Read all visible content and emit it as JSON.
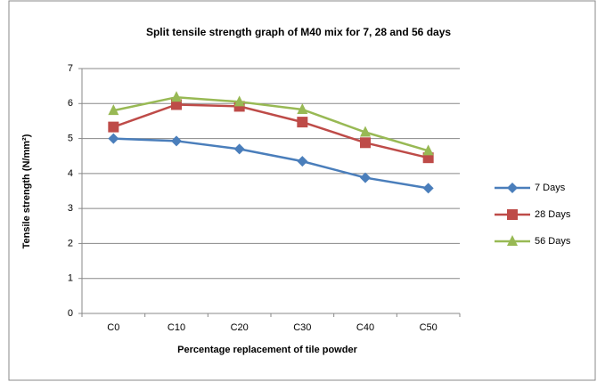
{
  "chart_data": {
    "type": "line",
    "title": "Split tensile strength graph of M40 mix for 7, 28 and 56 days",
    "x_label": "Percentage replacement of tile powder",
    "y_label": "Tensile strength (N/mm²)",
    "categories": [
      "C0",
      "C10",
      "C20",
      "C30",
      "C40",
      "C50"
    ],
    "series": [
      {
        "name": "7 Days",
        "color": "#4a7ebb",
        "marker": "diamond",
        "values": [
          5.0,
          4.93,
          4.7,
          4.35,
          3.88,
          3.58
        ]
      },
      {
        "name": "28 Days",
        "color": "#be4b48",
        "marker": "square",
        "values": [
          5.33,
          5.97,
          5.92,
          5.47,
          4.88,
          4.45
        ]
      },
      {
        "name": "56 Days",
        "color": "#98b954",
        "marker": "triangle",
        "values": [
          5.8,
          6.18,
          6.05,
          5.83,
          5.18,
          4.65
        ]
      }
    ],
    "ylim": [
      0,
      7
    ],
    "yticks": [
      0,
      1,
      2,
      3,
      4,
      5,
      6,
      7
    ],
    "grid": true,
    "legend": "right"
  }
}
